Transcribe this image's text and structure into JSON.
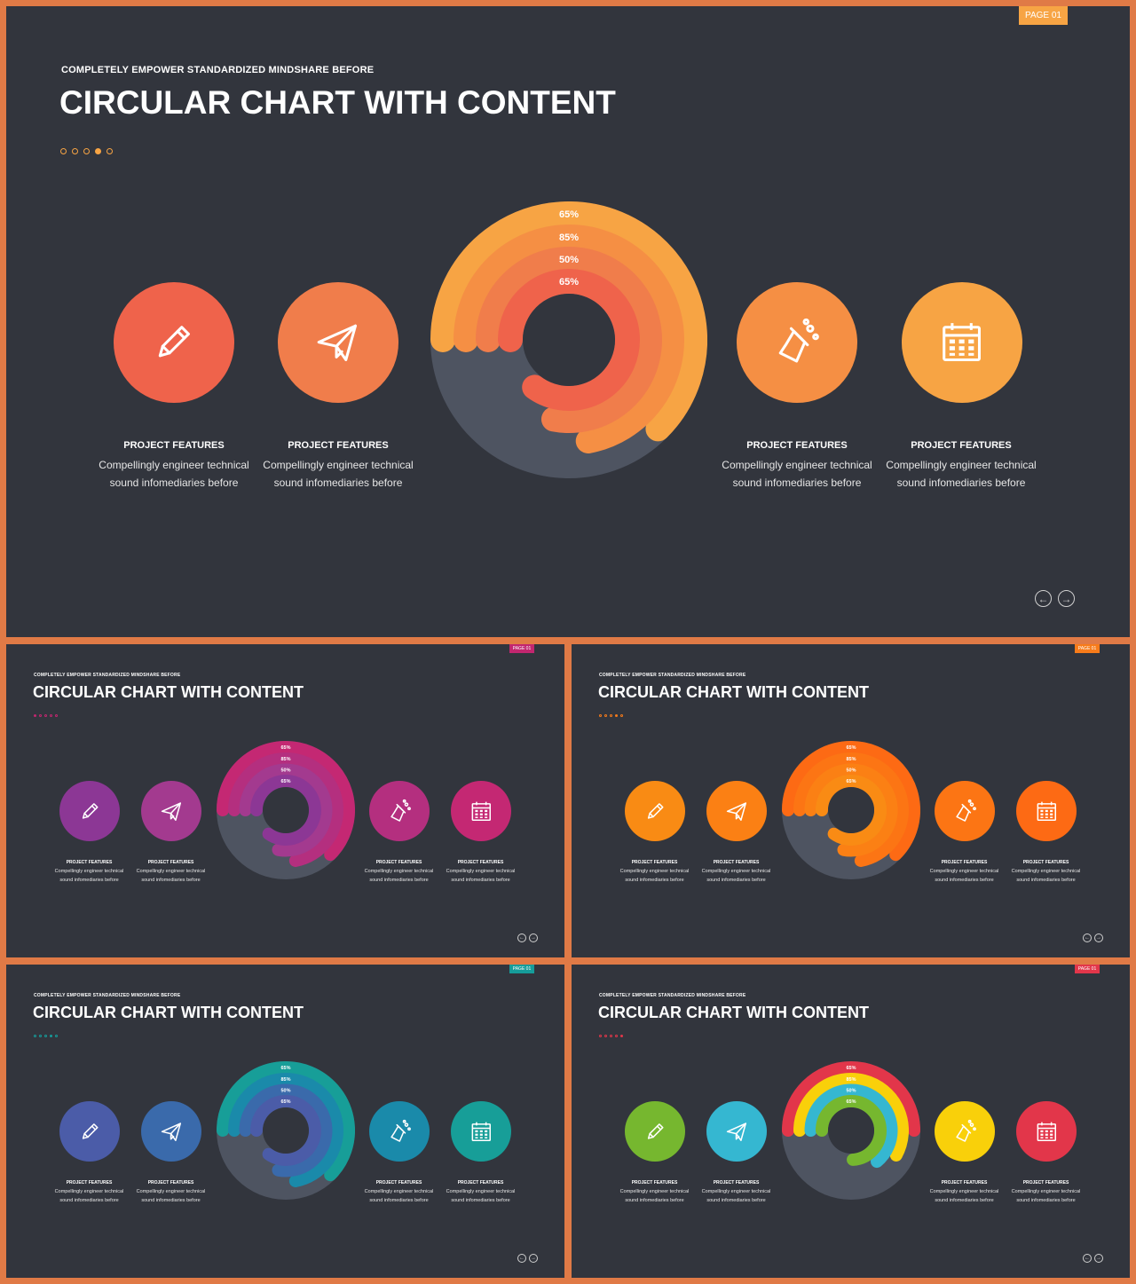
{
  "page_tag": "PAGE 01",
  "subtitle": "COMPLETELY EMPOWER STANDARDIZED MINDSHARE BEFORE",
  "title": "CIRCULAR CHART WITH CONTENT",
  "feature_heading": "PROJECT FEATURES",
  "feature_body_line1": "Compellingly engineer technical",
  "feature_body_line2": "sound infomediaries before",
  "ring_labels": [
    "65%",
    "85%",
    "50%",
    "65%"
  ],
  "icons": [
    "pencil-icon",
    "paper-plane-icon",
    "flask-icon",
    "calendar-icon"
  ],
  "nav": {
    "prev": "←",
    "next": "→"
  },
  "slides": [
    {
      "name": "orange-theme-main",
      "tag_color": "#f7a444",
      "dot_color": "#f7a444",
      "active_dot": 3,
      "circle_colors": [
        "#ef634b",
        "#f07d4b",
        "#f58f44",
        "#f7a444"
      ],
      "ring_colors": [
        "#f7a444",
        "#f58f44",
        "#f07d4b",
        "#ef634b"
      ],
      "ring_fraction": [
        0.625,
        0.72,
        0.78,
        0.85
      ]
    },
    {
      "name": "purple-magenta-theme",
      "tag_color": "#c2266f",
      "dot_color": "#c2266f",
      "active_dot": 0,
      "circle_colors": [
        "#8c3795",
        "#a33a8f",
        "#b42f7f",
        "#c42873"
      ],
      "ring_colors": [
        "#c42873",
        "#b42f7f",
        "#a33a8f",
        "#8c3795"
      ],
      "ring_fraction": [
        0.625,
        0.72,
        0.78,
        0.85
      ]
    },
    {
      "name": "bright-orange-theme",
      "tag_color": "#f77b1a",
      "dot_color": "#f77b1a",
      "active_dot": 3,
      "circle_colors": [
        "#f98b14",
        "#fb8014",
        "#fc7514",
        "#fd6a14"
      ],
      "ring_colors": [
        "#fd6a14",
        "#fc7514",
        "#fb8014",
        "#f98b14"
      ],
      "ring_fraction": [
        0.625,
        0.72,
        0.78,
        0.85
      ]
    },
    {
      "name": "blue-teal-theme",
      "tag_color": "#169c9a",
      "dot_color": "#169c9a",
      "active_dot": 3,
      "circle_colors": [
        "#4b5ca8",
        "#3a6aab",
        "#1a8aaa",
        "#179e98"
      ],
      "ring_colors": [
        "#179e98",
        "#1a8aaa",
        "#3a6aab",
        "#4b5ca8"
      ],
      "ring_fraction": [
        0.625,
        0.72,
        0.78,
        0.85
      ]
    },
    {
      "name": "multicolor-theme",
      "tag_color": "#e2364a",
      "dot_color": "#e2364a",
      "active_dot": 4,
      "circle_colors": [
        "#76b72f",
        "#35b7d1",
        "#f9d00a",
        "#e2364a"
      ],
      "ring_colors": [
        "#e2364a",
        "#f9d00a",
        "#35b7d1",
        "#76b72f"
      ],
      "ring_fraction": [
        0.5,
        0.58,
        0.64,
        0.74
      ]
    }
  ]
}
